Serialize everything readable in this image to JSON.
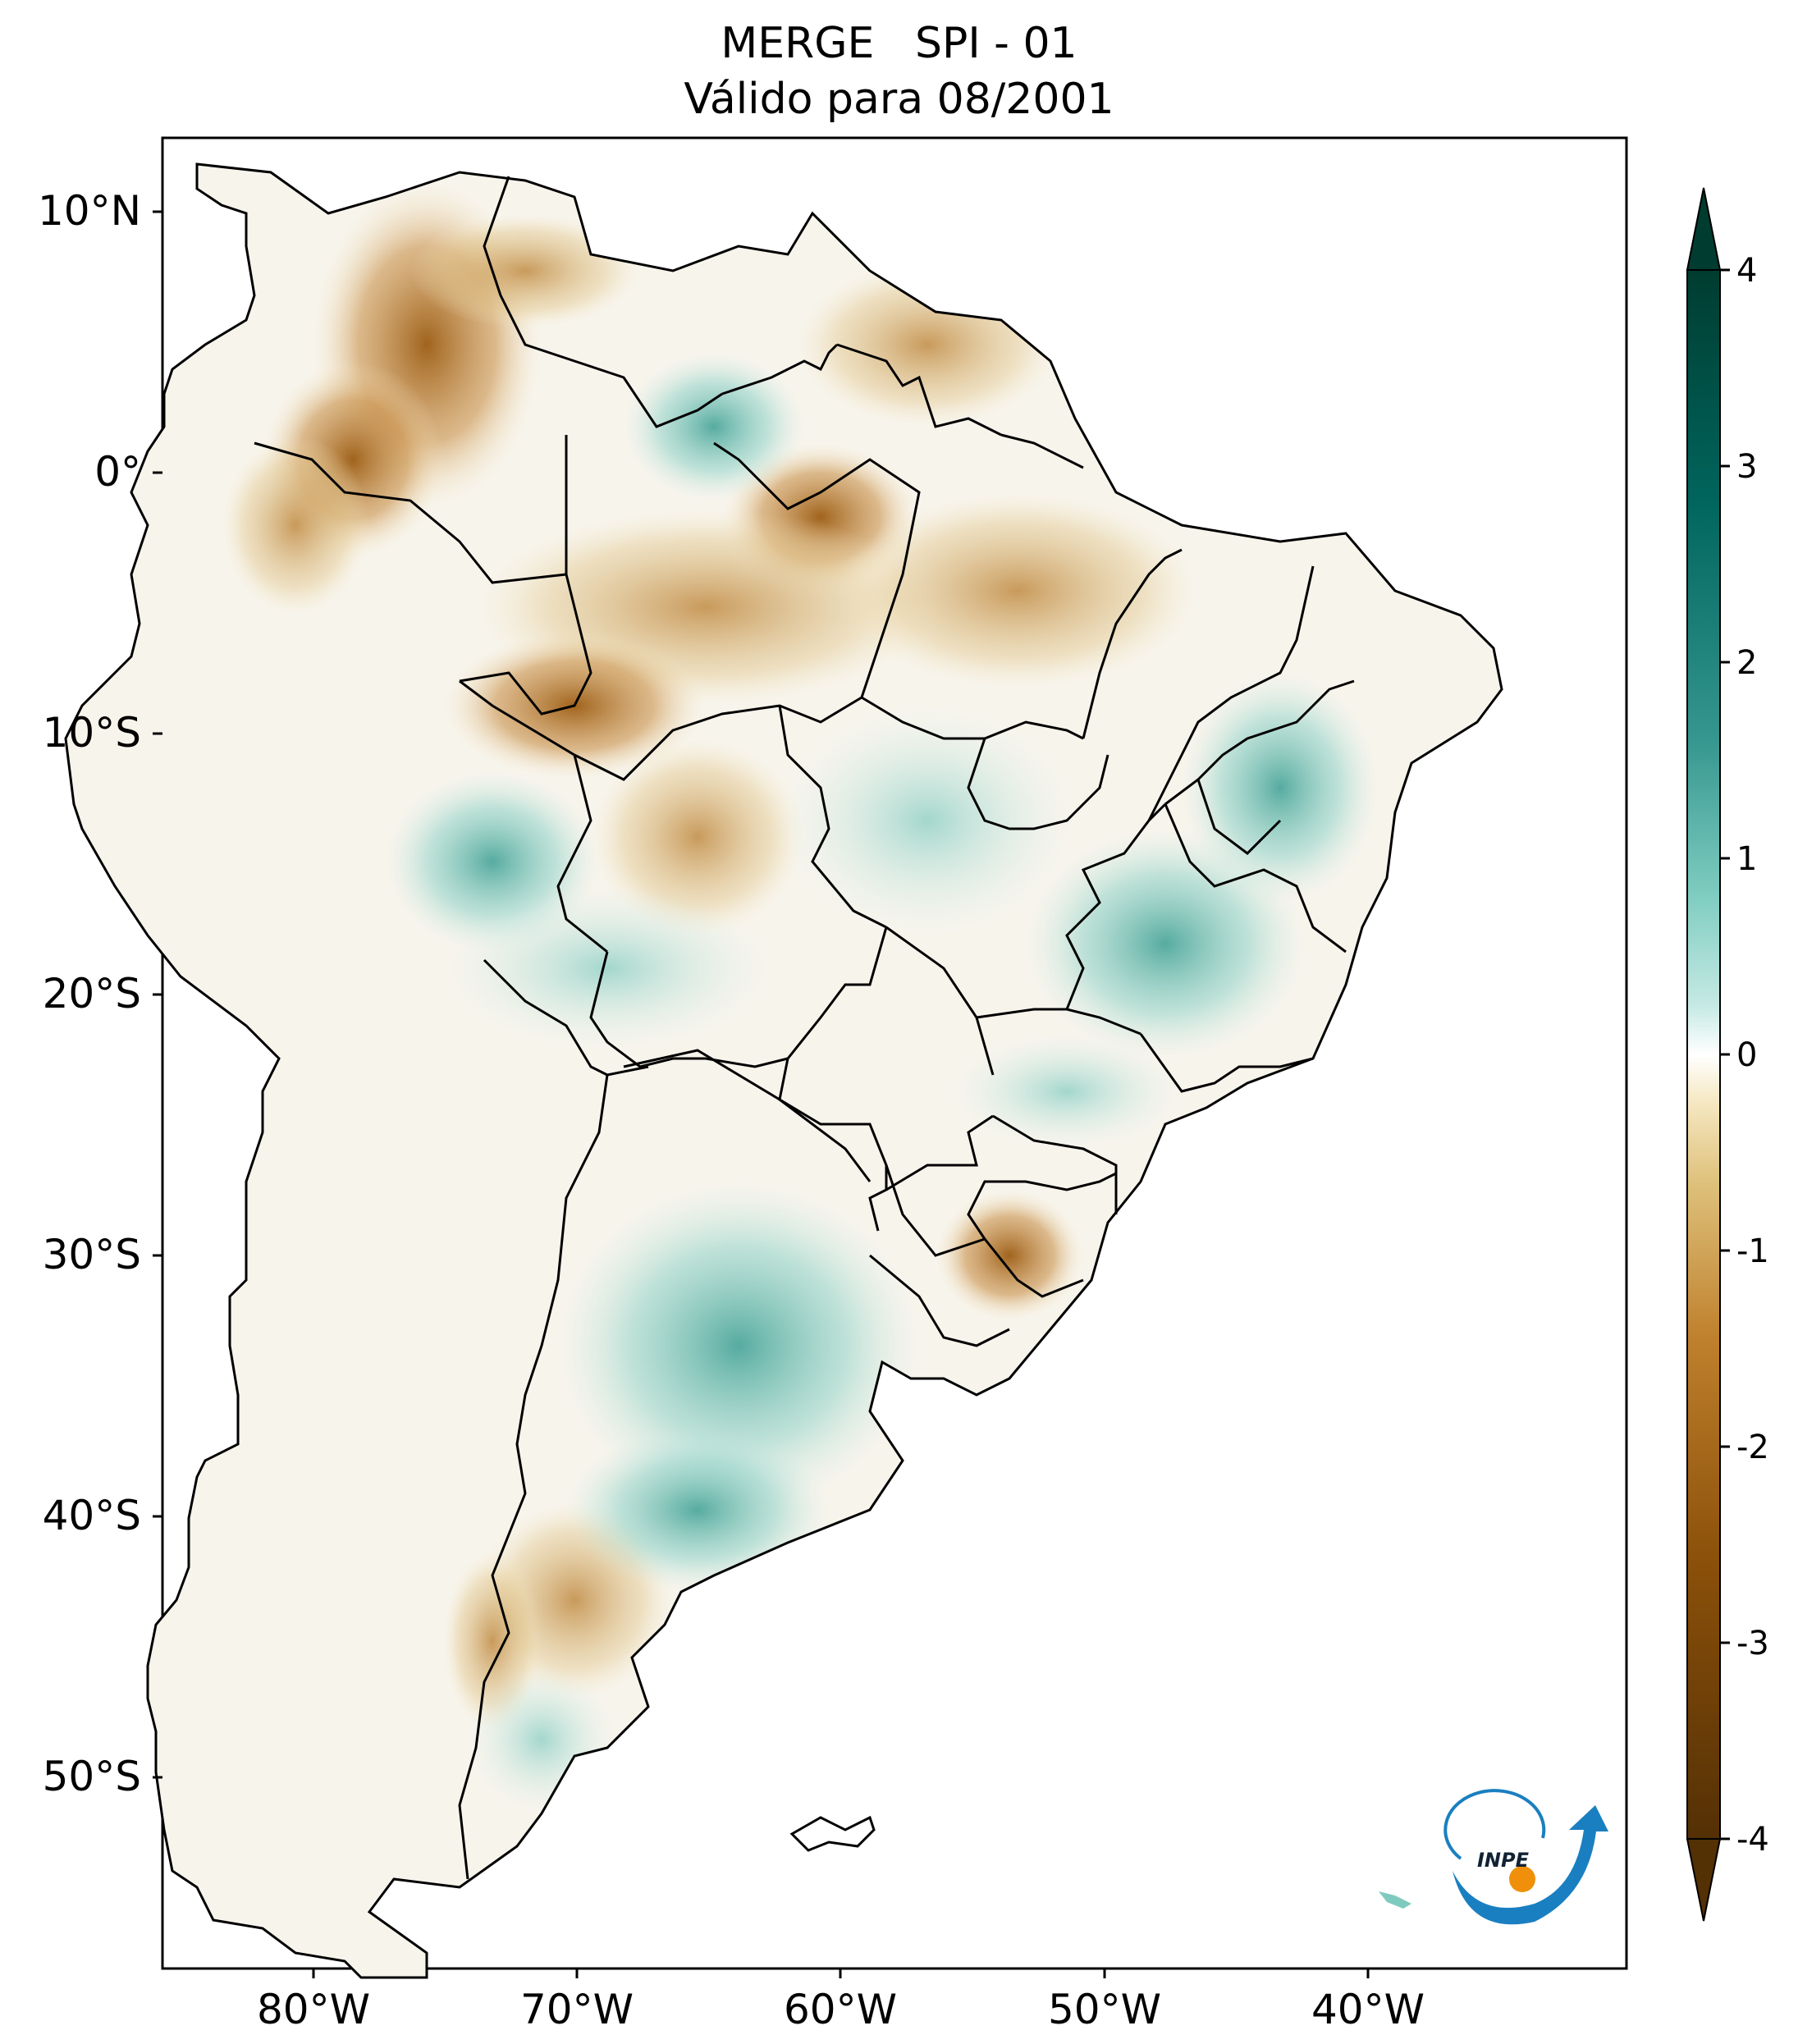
{
  "title": {
    "line1": "MERGE   SPI - 01",
    "line2": "Válido para 08/2001"
  },
  "map": {
    "region": "South America",
    "lat_ticks": [
      "10°N",
      "0°",
      "10°S",
      "20°S",
      "30°S",
      "40°S",
      "50°S"
    ],
    "lon_ticks": [
      "80°W",
      "70°W",
      "60°W",
      "50°W",
      "40°W"
    ],
    "extent": {
      "lon_min": -85,
      "lon_max": -30,
      "lat_min": -56,
      "lat_max": 13
    }
  },
  "colorbar": {
    "ticks": [
      "4",
      "3",
      "2",
      "1",
      "0",
      "-1",
      "-2",
      "-3",
      "-4"
    ],
    "min": -4,
    "max": 4,
    "colors": {
      "dry_extreme": "#543005",
      "dry": "#bf812d",
      "neutral": "#ffffff",
      "wet": "#35978f",
      "wet_extreme": "#003c30"
    }
  },
  "logo": {
    "text": "INPE"
  }
}
